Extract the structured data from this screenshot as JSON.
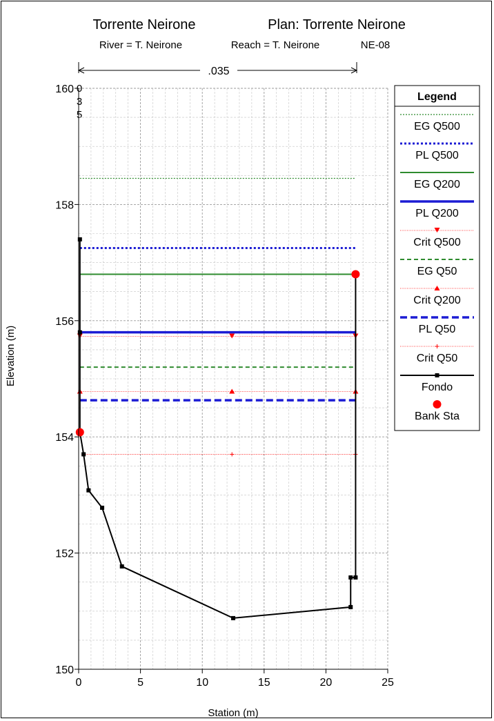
{
  "header": {
    "title_left": "Torrente Neirone",
    "title_right": "Plan: Torrente Neirone",
    "river": "River = T. Neirone",
    "reach": "Reach = T. Neirone",
    "station_id": "NE-08"
  },
  "chart_data": {
    "type": "line",
    "xlabel": "Station (m)",
    "ylabel": "Elevation (m)",
    "xlim": [
      0,
      25
    ],
    "ylim": [
      150,
      160
    ],
    "x_ticks": [
      0,
      5,
      10,
      15,
      20,
      25
    ],
    "y_ticks": [
      150,
      152,
      154,
      156,
      158,
      160
    ],
    "grid": true,
    "manning": {
      "label": ".035",
      "vertical_label": [
        "0",
        "3",
        "5"
      ],
      "from": 0.1,
      "to": 22.4
    },
    "water_levels": [
      {
        "name": "EG Q500",
        "value": 158.45,
        "x_start": 0.1,
        "x_end": 22.4,
        "color": "#2e8b2e",
        "style": "dotted"
      },
      {
        "name": "PL Q500",
        "value": 157.25,
        "x_start": 0.1,
        "x_end": 22.4,
        "color": "#1c1cd4",
        "style": "dotted-thick"
      },
      {
        "name": "EG Q200",
        "value": 156.8,
        "x_start": 0.1,
        "x_end": 22.4,
        "color": "#2e8b2e",
        "style": "solid"
      },
      {
        "name": "PL Q200",
        "value": 155.8,
        "x_start": 0.1,
        "x_end": 22.4,
        "color": "#1c1cd4",
        "style": "solid-thick"
      },
      {
        "name": "Crit Q500",
        "value": 155.73,
        "x_start": 0.1,
        "x_end": 22.4,
        "color": "#ff0000",
        "style": "crit-down",
        "markers": [
          0.1,
          12.4,
          22.4
        ]
      },
      {
        "name": "EG Q50",
        "value": 155.2,
        "x_start": 0.1,
        "x_end": 22.4,
        "color": "#2e8b2e",
        "style": "dashed"
      },
      {
        "name": "Crit Q200",
        "value": 154.78,
        "x_start": 0.1,
        "x_end": 22.4,
        "color": "#ff0000",
        "style": "crit-up",
        "markers": [
          0.1,
          12.4,
          22.4
        ]
      },
      {
        "name": "PL Q50",
        "value": 154.63,
        "x_start": 0.1,
        "x_end": 22.4,
        "color": "#1c1cd4",
        "style": "dashed-thick"
      },
      {
        "name": "Crit Q50",
        "value": 153.7,
        "x_start": 0.4,
        "x_end": 22.4,
        "color": "#ff0000",
        "style": "crit-plus",
        "markers": [
          0.4,
          12.4,
          22.4
        ]
      }
    ],
    "ground": {
      "name": "Fondo",
      "x": [
        0.1,
        0.1,
        0.1,
        0.4,
        0.8,
        1.9,
        3.5,
        12.5,
        22.0,
        22.0,
        22.4,
        22.4
      ],
      "y": [
        157.4,
        155.8,
        154.08,
        153.7,
        153.08,
        152.78,
        151.77,
        150.88,
        151.07,
        151.58,
        151.58,
        156.8
      ],
      "color": "#000000"
    },
    "bank_stations": {
      "name": "Bank Sta",
      "points": [
        [
          0.1,
          154.08
        ],
        [
          22.4,
          156.8
        ]
      ],
      "color": "#ff0000"
    },
    "legend": {
      "title": "Legend",
      "placement": "right",
      "entries": [
        "EG Q500",
        "PL Q500",
        "EG Q200",
        "PL Q200",
        "Crit Q500",
        "EG Q50",
        "Crit Q200",
        "PL Q50",
        "Crit Q50",
        "Fondo",
        "Bank Sta"
      ]
    }
  }
}
